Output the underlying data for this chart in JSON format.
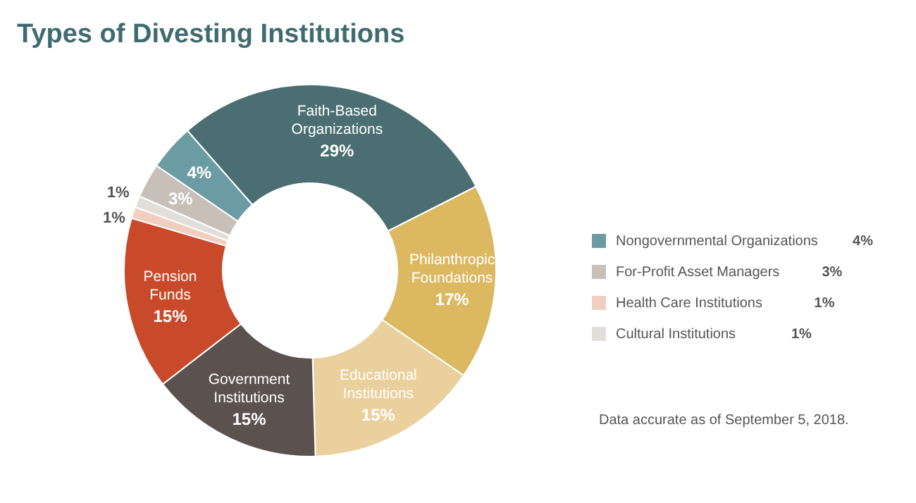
{
  "chart_data": {
    "type": "donut",
    "title": "Types of Divesting Institutions",
    "categories": [
      "Faith-Based Organizations",
      "Philanthropic Foundations",
      "Educational Institutions",
      "Government Institutions",
      "Pension Funds",
      "Health Care Institutions",
      "Cultural Institutions",
      "For-Profit Asset Managers",
      "Nongovernmental Organizations"
    ],
    "values": [
      29,
      17,
      15,
      15,
      15,
      1,
      1,
      3,
      4
    ],
    "colors": [
      "#4a6e71",
      "#dcb860",
      "#ead09c",
      "#5b514e",
      "#c84a2a",
      "#f1cfc0",
      "#e2deda",
      "#c7bfb8",
      "#6c9ca3"
    ],
    "value_labels": [
      "29%",
      "17%",
      "15%",
      "15%",
      "15%",
      "1%",
      "1%",
      "3%",
      "4%"
    ],
    "legend": "right",
    "annotations": [
      "Data accurate as of September 5, 2018."
    ]
  }
}
